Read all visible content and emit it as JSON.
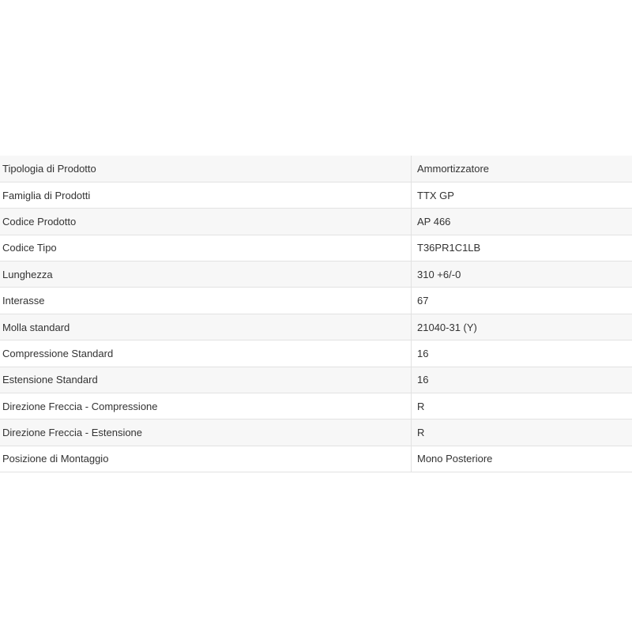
{
  "specs": [
    {
      "label": "Tipologia di Prodotto",
      "value": "Ammortizzatore"
    },
    {
      "label": "Famiglia di Prodotti",
      "value": "TTX GP"
    },
    {
      "label": "Codice Prodotto",
      "value": "AP 466"
    },
    {
      "label": "Codice Tipo",
      "value": "T36PR1C1LB"
    },
    {
      "label": "Lunghezza",
      "value": "310 +6/-0"
    },
    {
      "label": "Interasse",
      "value": "67"
    },
    {
      "label": "Molla standard",
      "value": "21040-31 (Y)"
    },
    {
      "label": "Compressione Standard",
      "value": "16"
    },
    {
      "label": "Estensione Standard",
      "value": "16"
    },
    {
      "label": "Direzione Freccia - Compressione",
      "value": "R"
    },
    {
      "label": "Direzione Freccia - Estensione",
      "value": "R"
    },
    {
      "label": "Posizione di Montaggio",
      "value": "Mono Posteriore"
    }
  ]
}
